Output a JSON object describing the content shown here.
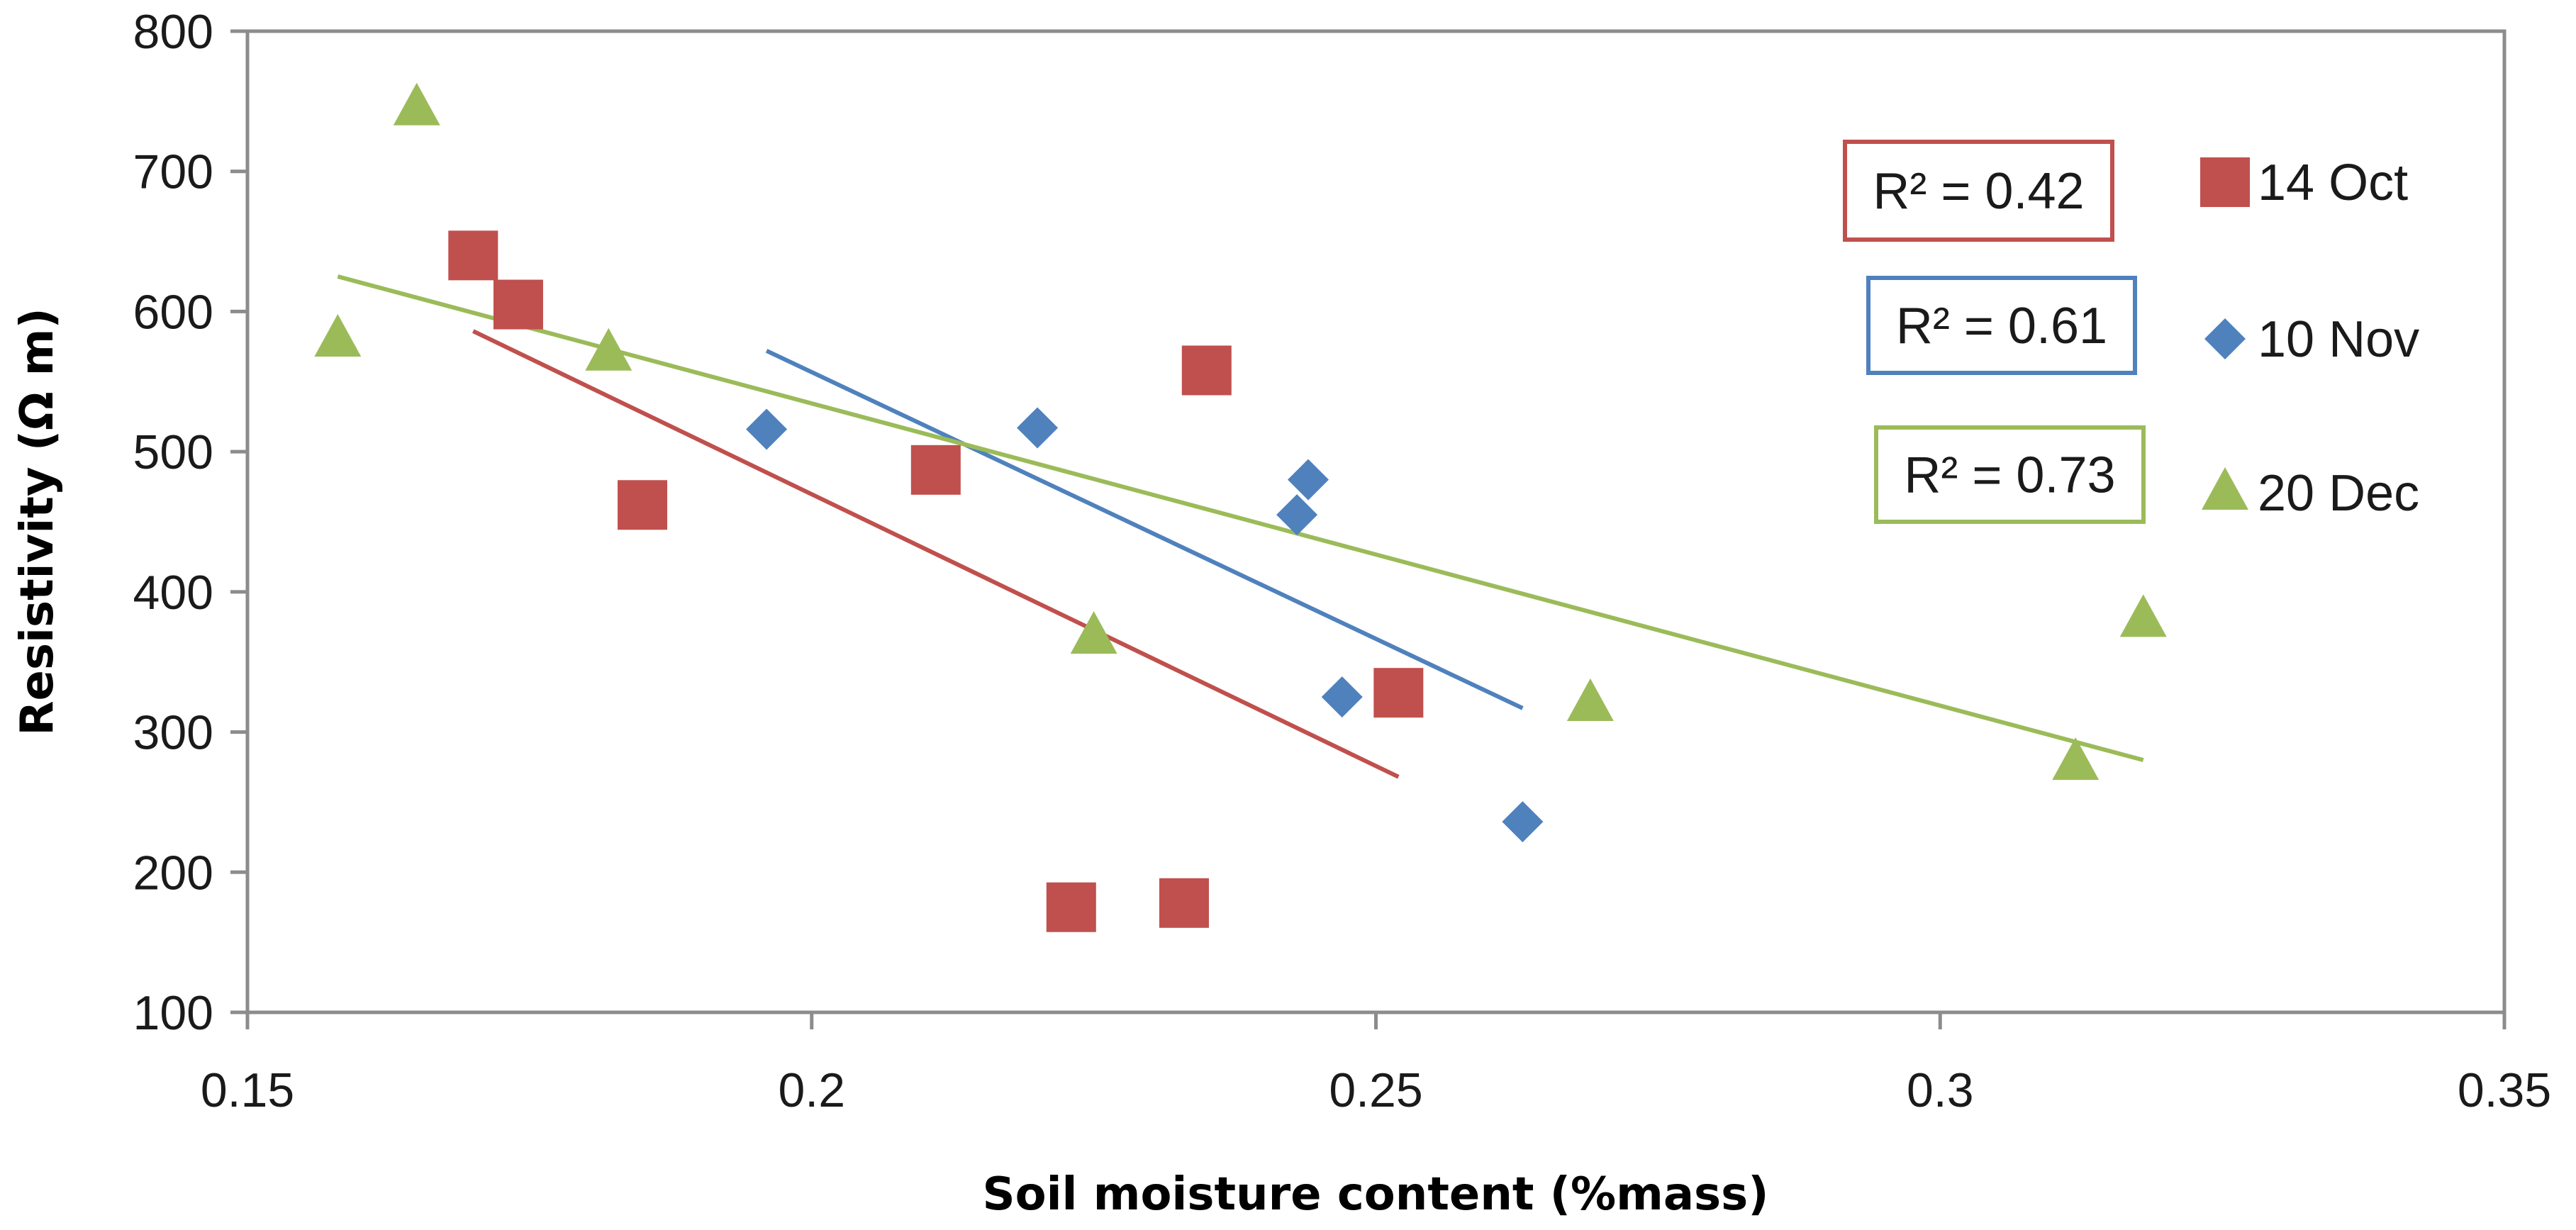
{
  "chart_data": {
    "type": "scatter",
    "title": "",
    "xlabel": "Soil moisture content (%mass)",
    "ylabel": "Resistivity (Ω m)",
    "xlim": [
      0.15,
      0.35
    ],
    "ylim": [
      100,
      800
    ],
    "x_ticks": [
      0.15,
      0.2,
      0.25,
      0.3,
      0.35
    ],
    "x_tick_labels": [
      "0.15",
      "0.2",
      "0.25",
      "0.3",
      "0.35"
    ],
    "y_ticks": [
      100,
      200,
      300,
      400,
      500,
      600,
      700,
      800
    ],
    "y_tick_labels": [
      "100",
      "200",
      "300",
      "400",
      "500",
      "600",
      "700",
      "800"
    ],
    "grid": false,
    "legend_position": "right",
    "series": [
      {
        "name": "14 Oct",
        "marker": "square",
        "color": "#C0504D",
        "r2_label": "R² = 0.42",
        "points": [
          {
            "x": 0.17,
            "y": 640
          },
          {
            "x": 0.174,
            "y": 605
          },
          {
            "x": 0.185,
            "y": 462
          },
          {
            "x": 0.211,
            "y": 487
          },
          {
            "x": 0.223,
            "y": 175
          },
          {
            "x": 0.233,
            "y": 178
          },
          {
            "x": 0.235,
            "y": 558
          },
          {
            "x": 0.252,
            "y": 328
          }
        ],
        "trendline": {
          "x": [
            0.17,
            0.252
          ],
          "y": [
            586,
            268
          ]
        }
      },
      {
        "name": "10 Nov",
        "marker": "diamond",
        "color": "#4F81BD",
        "r2_label": "R² = 0.61",
        "points": [
          {
            "x": 0.196,
            "y": 516
          },
          {
            "x": 0.22,
            "y": 517
          },
          {
            "x": 0.243,
            "y": 455
          },
          {
            "x": 0.244,
            "y": 480
          },
          {
            "x": 0.247,
            "y": 325
          },
          {
            "x": 0.263,
            "y": 236
          }
        ],
        "trendline": {
          "x": [
            0.196,
            0.263
          ],
          "y": [
            572,
            317
          ]
        }
      },
      {
        "name": "20 Dec",
        "marker": "triangle",
        "color": "#9BBB59",
        "r2_label": "R² = 0.73",
        "points": [
          {
            "x": 0.158,
            "y": 580
          },
          {
            "x": 0.165,
            "y": 745
          },
          {
            "x": 0.182,
            "y": 570
          },
          {
            "x": 0.225,
            "y": 368
          },
          {
            "x": 0.269,
            "y": 320
          },
          {
            "x": 0.312,
            "y": 278
          },
          {
            "x": 0.318,
            "y": 380
          }
        ],
        "trendline": {
          "x": [
            0.158,
            0.318
          ],
          "y": [
            625,
            280
          ]
        }
      }
    ]
  }
}
